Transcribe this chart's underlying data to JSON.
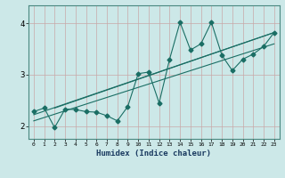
{
  "xlabel": "Humidex (Indice chaleur)",
  "ylabel": "",
  "bg_color": "#cce8e8",
  "line_color": "#1a6e64",
  "grid_color_major": "#b8d4d4",
  "grid_color_minor": "#d0e6e6",
  "data_x": [
    0,
    1,
    2,
    3,
    4,
    5,
    6,
    7,
    8,
    9,
    10,
    11,
    12,
    13,
    14,
    15,
    16,
    17,
    18,
    19,
    20,
    21,
    22,
    23
  ],
  "data_y": [
    2.28,
    2.35,
    1.97,
    2.33,
    2.32,
    2.28,
    2.27,
    2.2,
    2.1,
    2.38,
    3.02,
    3.05,
    2.45,
    3.3,
    4.02,
    3.48,
    3.6,
    4.02,
    3.38,
    3.08,
    3.3,
    3.4,
    3.55,
    3.82
  ],
  "trend1_x": [
    0,
    23
  ],
  "trend1_y": [
    2.22,
    3.82
  ],
  "trend2_x": [
    0,
    23
  ],
  "trend2_y": [
    2.1,
    3.6
  ],
  "trend3_x": [
    2,
    23
  ],
  "trend3_y": [
    2.35,
    3.82
  ],
  "xlim": [
    -0.5,
    23.5
  ],
  "ylim": [
    1.75,
    4.35
  ],
  "yticks": [
    2,
    3,
    4
  ],
  "xticks": [
    0,
    1,
    2,
    3,
    4,
    5,
    6,
    7,
    8,
    9,
    10,
    11,
    12,
    13,
    14,
    15,
    16,
    17,
    18,
    19,
    20,
    21,
    22,
    23
  ]
}
